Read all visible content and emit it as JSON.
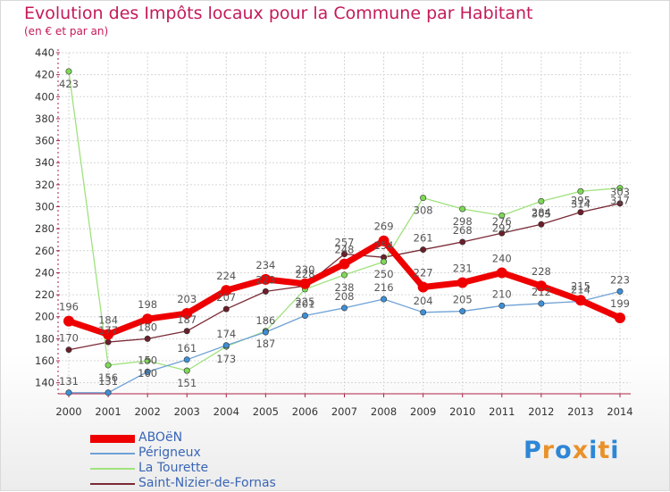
{
  "header": {
    "title": "Evolution des Impôts locaux pour la Commune par Habitant",
    "subtitle": "(en € et par an)"
  },
  "logo": {
    "text": "Proxiti",
    "letters": [
      "P",
      "r",
      "o",
      "x",
      "i",
      "t",
      "i"
    ],
    "colors": [
      "#2e86d6",
      "#e9912a",
      "#2e86d6",
      "#e9912a",
      "#2e86d6",
      "#e9912a",
      "#2e86d6"
    ]
  },
  "chart_data": {
    "type": "line",
    "title": "Evolution des Impôts locaux pour la Commune par Habitant",
    "subtitle": "(en € et par an)",
    "xlabel": "",
    "ylabel": "",
    "ylim": [
      130,
      440
    ],
    "yticks": [
      140,
      160,
      180,
      200,
      220,
      240,
      260,
      280,
      300,
      320,
      340,
      360,
      380,
      400,
      420,
      440
    ],
    "grid": true,
    "legend_position": "bottom-left",
    "categories": [
      "2000",
      "2001",
      "2002",
      "2003",
      "2004",
      "2005",
      "2006",
      "2007",
      "2008",
      "2009",
      "2010",
      "2011",
      "2012",
      "2013",
      "2014"
    ],
    "series": [
      {
        "name": "ABOëN",
        "color": "#ee0000",
        "width": 7,
        "marker": "#ee0000",
        "labelPos": "above",
        "values": [
          196,
          184,
          198,
          203,
          224,
          234,
          230,
          248,
          269,
          227,
          231,
          240,
          228,
          215,
          199
        ]
      },
      {
        "name": "Périgneux",
        "color": "#6fa1d6",
        "width": 1.3,
        "marker": "#3d8fd6",
        "labelPos": "above",
        "values": [
          131,
          131,
          150,
          161,
          174,
          186,
          201,
          208,
          216,
          204,
          205,
          210,
          212,
          214,
          223
        ]
      },
      {
        "name": "La Tourette",
        "color": "#9fe27d",
        "width": 1.3,
        "marker": "#7ed957",
        "labelPos": "below",
        "values": [
          423,
          156,
          160,
          151,
          173,
          187,
          225,
          238,
          250,
          308,
          298,
          292,
          305,
          314,
          317
        ]
      },
      {
        "name": "Saint-Nizier-de-Fornas",
        "color": "#7a2a35",
        "width": 1.3,
        "marker": "#6b1f2a",
        "labelPos": "above",
        "values": [
          170,
          177,
          180,
          187,
          207,
          223,
          228,
          257,
          254,
          261,
          268,
          276,
          284,
          295,
          303
        ]
      }
    ],
    "data_labels": [
      {
        "series": 0,
        "values": [
          "196",
          "184",
          "198",
          "203",
          "224",
          "234",
          "230",
          "248",
          "269",
          "227",
          "231",
          "240",
          "228",
          "215",
          "199"
        ]
      },
      {
        "series": 1,
        "values": [
          "131",
          "131",
          "150",
          "161",
          "174",
          "186",
          "201",
          "208",
          "216",
          "204",
          "205",
          "210",
          "212",
          "214",
          "223"
        ]
      },
      {
        "series": 2,
        "values": [
          "423",
          "156",
          "160",
          "151",
          "173",
          "187",
          "225",
          "238",
          "250",
          "308",
          "298",
          "292",
          "305",
          "314",
          "317"
        ]
      },
      {
        "series": 3,
        "values": [
          "170",
          "177",
          "180",
          "187",
          "207",
          "223",
          "228",
          "257",
          "254",
          "261",
          "268",
          "276",
          "284",
          "295",
          "303"
        ]
      }
    ]
  }
}
